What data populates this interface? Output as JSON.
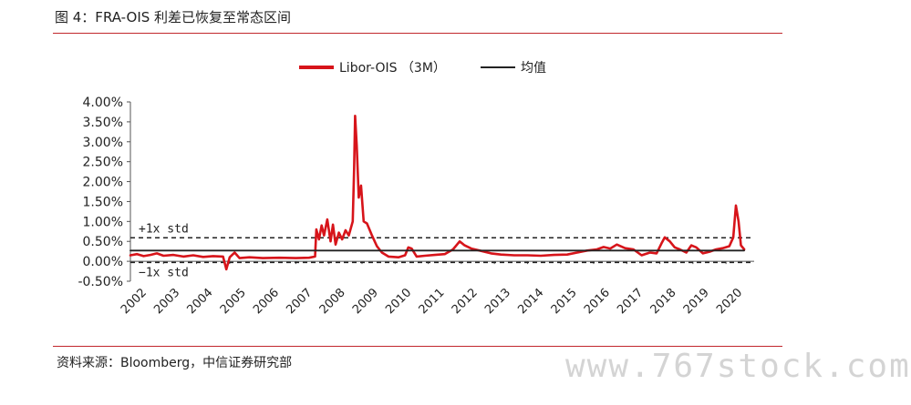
{
  "figure_title": "图 4：FRA-OIS 利差已恢复至常态区间",
  "source_note": "资料来源：Bloomberg，中信证券研究部",
  "watermark": "www.767stock.com",
  "chart_data": {
    "type": "line",
    "title": "",
    "xlabel": "",
    "ylabel": "",
    "ylim": [
      -0.5,
      4.0
    ],
    "xlim": [
      2002.0,
      2020.85
    ],
    "y_tick_labels": [
      "4.00%",
      "3.50%",
      "3.00%",
      "2.50%",
      "2.00%",
      "1.50%",
      "1.00%",
      "0.50%",
      "0.00%",
      "-0.50%"
    ],
    "y_tick_values": [
      4.0,
      3.5,
      3.0,
      2.5,
      2.0,
      1.5,
      1.0,
      0.5,
      0.0,
      -0.5
    ],
    "x_tick_labels": [
      "2002",
      "2003",
      "2004",
      "2005",
      "2006",
      "2007",
      "2008",
      "2009",
      "2010",
      "2011",
      "2012",
      "2013",
      "2014",
      "2015",
      "2016",
      "2017",
      "2018",
      "2019",
      "2020"
    ],
    "legend_position": "top",
    "grid": false,
    "colors": {
      "libor_ois": "#d7141a",
      "mean": "#222222",
      "std": "#222222"
    },
    "reference_lines": [
      {
        "label": "+1x std",
        "value": 0.59,
        "style": "dashed"
      },
      {
        "label": "−1x std",
        "value": -0.03,
        "style": "dashed"
      }
    ],
    "series": [
      {
        "name": "Libor-OIS （3M）",
        "style": "solid-thick",
        "points": [
          [
            2002.0,
            0.15
          ],
          [
            2002.2,
            0.18
          ],
          [
            2002.4,
            0.13
          ],
          [
            2002.6,
            0.16
          ],
          [
            2002.8,
            0.2
          ],
          [
            2003.0,
            0.14
          ],
          [
            2003.3,
            0.16
          ],
          [
            2003.6,
            0.12
          ],
          [
            2003.9,
            0.15
          ],
          [
            2004.2,
            0.11
          ],
          [
            2004.5,
            0.13
          ],
          [
            2004.8,
            0.12
          ],
          [
            2004.9,
            -0.2
          ],
          [
            2005.0,
            0.1
          ],
          [
            2005.15,
            0.22
          ],
          [
            2005.3,
            0.08
          ],
          [
            2005.6,
            0.1
          ],
          [
            2006.0,
            0.08
          ],
          [
            2006.5,
            0.09
          ],
          [
            2007.0,
            0.08
          ],
          [
            2007.4,
            0.09
          ],
          [
            2007.58,
            0.12
          ],
          [
            2007.62,
            0.8
          ],
          [
            2007.7,
            0.55
          ],
          [
            2007.78,
            0.9
          ],
          [
            2007.85,
            0.65
          ],
          [
            2007.95,
            1.05
          ],
          [
            2008.05,
            0.5
          ],
          [
            2008.12,
            0.92
          ],
          [
            2008.2,
            0.42
          ],
          [
            2008.3,
            0.72
          ],
          [
            2008.4,
            0.55
          ],
          [
            2008.5,
            0.78
          ],
          [
            2008.6,
            0.65
          ],
          [
            2008.72,
            1.0
          ],
          [
            2008.76,
            2.3
          ],
          [
            2008.79,
            3.65
          ],
          [
            2008.84,
            2.9
          ],
          [
            2008.9,
            1.6
          ],
          [
            2008.97,
            1.9
          ],
          [
            2009.05,
            1.0
          ],
          [
            2009.15,
            0.95
          ],
          [
            2009.3,
            0.65
          ],
          [
            2009.45,
            0.38
          ],
          [
            2009.6,
            0.22
          ],
          [
            2009.8,
            0.12
          ],
          [
            2010.1,
            0.1
          ],
          [
            2010.3,
            0.15
          ],
          [
            2010.4,
            0.35
          ],
          [
            2010.5,
            0.32
          ],
          [
            2010.65,
            0.12
          ],
          [
            2010.9,
            0.14
          ],
          [
            2011.2,
            0.16
          ],
          [
            2011.5,
            0.18
          ],
          [
            2011.75,
            0.3
          ],
          [
            2011.95,
            0.5
          ],
          [
            2012.1,
            0.4
          ],
          [
            2012.3,
            0.32
          ],
          [
            2012.6,
            0.26
          ],
          [
            2012.9,
            0.2
          ],
          [
            2013.2,
            0.17
          ],
          [
            2013.6,
            0.15
          ],
          [
            2014.0,
            0.15
          ],
          [
            2014.4,
            0.14
          ],
          [
            2014.8,
            0.16
          ],
          [
            2015.2,
            0.17
          ],
          [
            2015.5,
            0.22
          ],
          [
            2015.8,
            0.27
          ],
          [
            2016.1,
            0.3
          ],
          [
            2016.3,
            0.36
          ],
          [
            2016.5,
            0.32
          ],
          [
            2016.7,
            0.42
          ],
          [
            2016.95,
            0.33
          ],
          [
            2017.2,
            0.3
          ],
          [
            2017.45,
            0.15
          ],
          [
            2017.7,
            0.22
          ],
          [
            2017.9,
            0.2
          ],
          [
            2018.05,
            0.45
          ],
          [
            2018.15,
            0.6
          ],
          [
            2018.3,
            0.5
          ],
          [
            2018.45,
            0.35
          ],
          [
            2018.6,
            0.3
          ],
          [
            2018.8,
            0.22
          ],
          [
            2018.95,
            0.4
          ],
          [
            2019.1,
            0.35
          ],
          [
            2019.3,
            0.2
          ],
          [
            2019.5,
            0.24
          ],
          [
            2019.7,
            0.3
          ],
          [
            2019.9,
            0.33
          ],
          [
            2020.1,
            0.38
          ],
          [
            2020.22,
            0.6
          ],
          [
            2020.3,
            1.4
          ],
          [
            2020.38,
            1.0
          ],
          [
            2020.45,
            0.4
          ],
          [
            2020.55,
            0.3
          ]
        ]
      },
      {
        "name": "均值",
        "style": "solid",
        "points": [
          [
            2002.0,
            0.27
          ],
          [
            2020.55,
            0.27
          ]
        ]
      }
    ]
  }
}
